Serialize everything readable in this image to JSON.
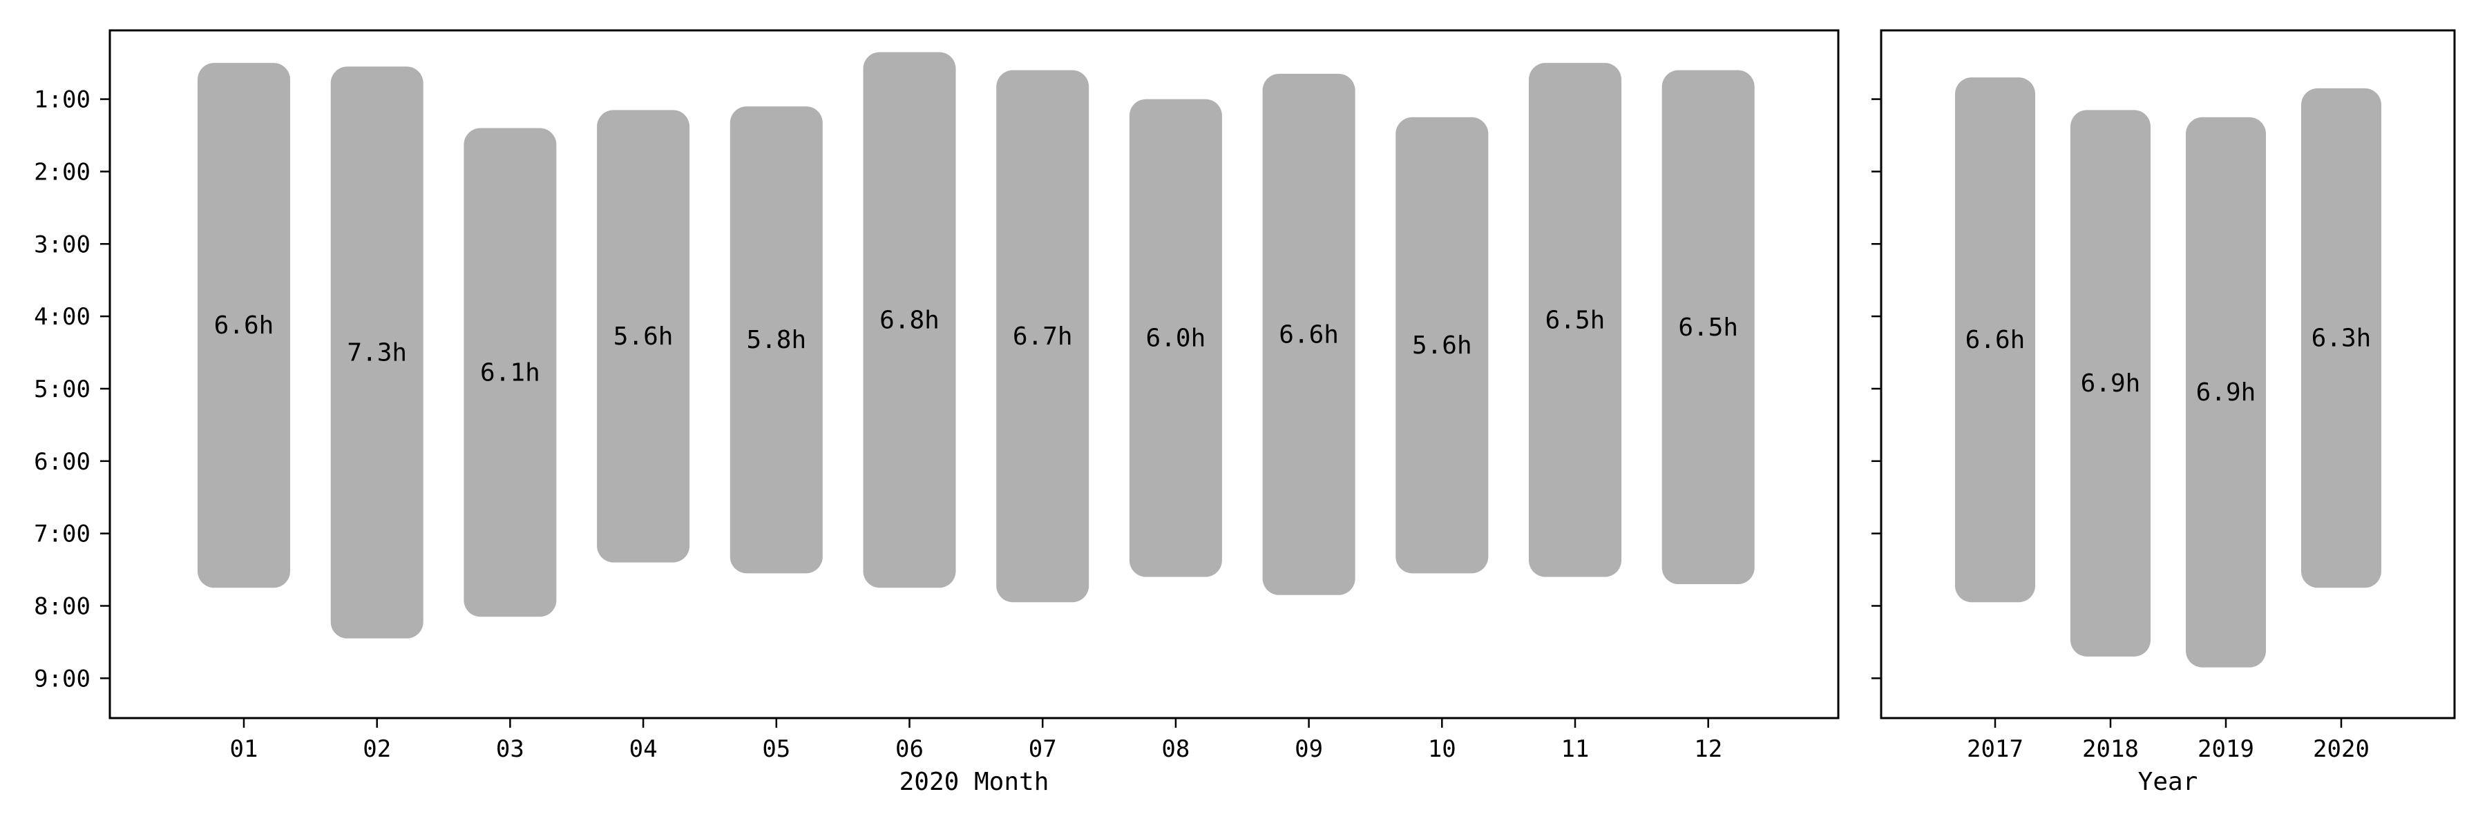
{
  "colors": {
    "bar": "#b0b0b0",
    "axis": "#000000",
    "background": "#ffffff"
  },
  "chart_data": [
    {
      "type": "bar",
      "orientation": "vertical-range",
      "xlabel": "2020 Month",
      "ylabel": "",
      "ylim": [
        9.55,
        0.05
      ],
      "y_inverted": true,
      "yticks": [
        1,
        2,
        3,
        4,
        5,
        6,
        7,
        8,
        9
      ],
      "ytick_labels": [
        "1:00",
        "2:00",
        "3:00",
        "4:00",
        "5:00",
        "6:00",
        "7:00",
        "8:00",
        "9:00"
      ],
      "categories": [
        "01",
        "02",
        "03",
        "04",
        "05",
        "06",
        "07",
        "08",
        "09",
        "10",
        "11",
        "12"
      ],
      "start": [
        0.5,
        0.55,
        1.4,
        1.15,
        1.1,
        0.35,
        0.6,
        1.0,
        0.65,
        1.25,
        0.5,
        0.6
      ],
      "end": [
        7.75,
        8.45,
        8.15,
        7.4,
        7.55,
        7.75,
        7.95,
        7.6,
        7.85,
        7.55,
        7.6,
        7.7
      ],
      "labels": [
        "6.6h",
        "7.3h",
        "6.1h",
        "5.6h",
        "5.8h",
        "6.8h",
        "6.7h",
        "6.0h",
        "6.6h",
        "5.6h",
        "6.5h",
        "6.5h"
      ],
      "grid": false
    },
    {
      "type": "bar",
      "orientation": "vertical-range",
      "xlabel": "Year",
      "ylabel": "",
      "ylim": [
        9.55,
        0.05
      ],
      "y_inverted": true,
      "yticks": [
        1,
        2,
        3,
        4,
        5,
        6,
        7,
        8,
        9
      ],
      "categories": [
        "2017",
        "2018",
        "2019",
        "2020"
      ],
      "start": [
        0.7,
        1.15,
        1.25,
        0.85
      ],
      "end": [
        7.95,
        8.7,
        8.85,
        7.75
      ],
      "labels": [
        "6.6h",
        "6.9h",
        "6.9h",
        "6.3h"
      ],
      "grid": false
    }
  ]
}
